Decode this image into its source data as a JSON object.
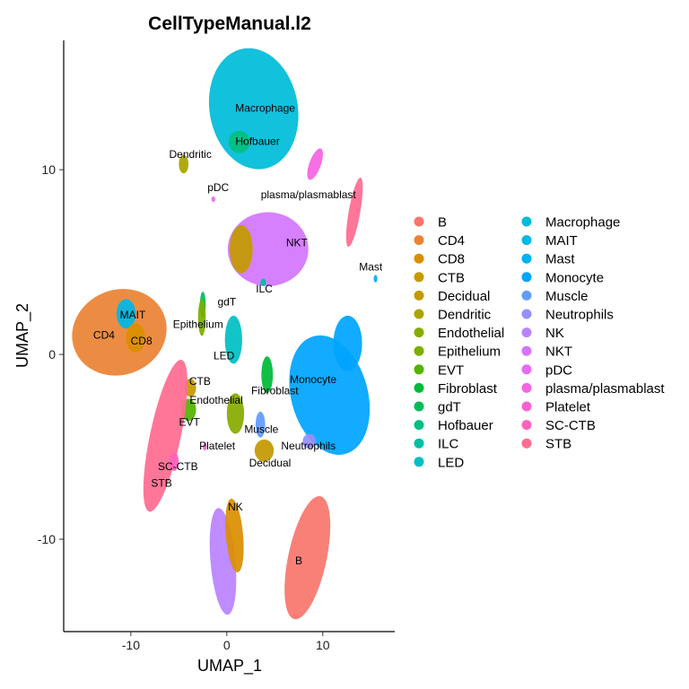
{
  "chart_data": {
    "type": "scatter",
    "title": "CellTypeManual.l2",
    "xlabel": "UMAP_1",
    "ylabel": "UMAP_2",
    "xlim": [
      -17,
      17.5
    ],
    "ylim": [
      -15,
      17
    ],
    "xticks": [
      -10,
      0,
      10
    ],
    "yticks": [
      -10,
      0,
      10
    ],
    "grid": false,
    "legend_position": "right",
    "legend_columns": 2,
    "categories": [
      {
        "name": "B",
        "color": "#F8766D"
      },
      {
        "name": "CD4",
        "color": "#EB8335"
      },
      {
        "name": "CD8",
        "color": "#DA8F00"
      },
      {
        "name": "CTB",
        "color": "#C49A00"
      },
      {
        "name": "Decidual",
        "color": "#C49A00"
      },
      {
        "name": "Dendritic",
        "color": "#A9A400"
      },
      {
        "name": "Endothelial",
        "color": "#86AC00"
      },
      {
        "name": "Epithelium",
        "color": "#7CAE00"
      },
      {
        "name": "EVT",
        "color": "#53B400"
      },
      {
        "name": "Fibroblast",
        "color": "#00BA38"
      },
      {
        "name": "gdT",
        "color": "#00BC59"
      },
      {
        "name": "Hofbauer",
        "color": "#00BF7D"
      },
      {
        "name": "ILC",
        "color": "#00C0A3"
      },
      {
        "name": "LED",
        "color": "#00BFC4"
      },
      {
        "name": "Macrophage",
        "color": "#00BCD8"
      },
      {
        "name": "MAIT",
        "color": "#00B8E7"
      },
      {
        "name": "Mast",
        "color": "#00B0F6"
      },
      {
        "name": "Monocyte",
        "color": "#00A5FF"
      },
      {
        "name": "Muscle",
        "color": "#619CFF"
      },
      {
        "name": "Neutrophils",
        "color": "#9590FF"
      },
      {
        "name": "NK",
        "color": "#B983FF"
      },
      {
        "name": "NKT",
        "color": "#D376FF"
      },
      {
        "name": "pDC",
        "color": "#E76BF3"
      },
      {
        "name": "plasma/plasmablast",
        "color": "#F564E3"
      },
      {
        "name": "Platelet",
        "color": "#FD61D1"
      },
      {
        "name": "SC-CTB",
        "color": "#FF62BC"
      },
      {
        "name": "STB",
        "color": "#FF6C91"
      }
    ],
    "clusters": [
      {
        "name": "Macrophage",
        "label": "Macrophage",
        "color": "#00BCD8",
        "cx": 2.8,
        "cy": 13.3,
        "rx": 4.6,
        "ry": 3.3,
        "angle": 10,
        "label_x": 4.0,
        "label_y": 13.3
      },
      {
        "name": "Hofbauer",
        "label": "Hofbauer",
        "color": "#00BF7D",
        "cx": 1.3,
        "cy": 11.5,
        "rx": 1.1,
        "ry": 0.6,
        "angle": 0,
        "label_x": 3.2,
        "label_y": 11.5
      },
      {
        "name": "Dendritic",
        "label": "Dendritic",
        "color": "#A9A400",
        "cx": -4.5,
        "cy": 10.3,
        "rx": 0.5,
        "ry": 0.5,
        "angle": 0,
        "label_x": -3.8,
        "label_y": 10.8
      },
      {
        "name": "pDC",
        "label": "pDC",
        "color": "#E76BF3",
        "cx": -1.4,
        "cy": 8.4,
        "rx": 0.2,
        "ry": 0.15,
        "angle": 0,
        "label_x": -0.9,
        "label_y": 9.0
      },
      {
        "name": "plasma/plasmablast",
        "label": "plasma/plasmablast",
        "color": "#F564E3",
        "cx": 9.2,
        "cy": 10.3,
        "rx": 0.6,
        "ry": 0.9,
        "angle": -20,
        "label_x": 8.5,
        "label_y": 8.6
      },
      {
        "name": "STB-upper",
        "label": "",
        "color": "#FF6C91",
        "cx": 13.3,
        "cy": 7.7,
        "rx": 0.6,
        "ry": 1.9,
        "angle": -10
      },
      {
        "name": "Mast",
        "label": "Mast",
        "color": "#00B0F6",
        "cx": 15.5,
        "cy": 4.1,
        "rx": 0.2,
        "ry": 0.2,
        "angle": 0,
        "label_x": 15.0,
        "label_y": 4.7
      },
      {
        "name": "NKT",
        "label": "NKT",
        "color": "#D376FF",
        "cx": 4.3,
        "cy": 5.7,
        "rx": 4.2,
        "ry": 2.0,
        "angle": 0,
        "label_x": 7.3,
        "label_y": 6.0
      },
      {
        "name": "CTB-upper",
        "label": "",
        "color": "#C49A00",
        "cx": 1.5,
        "cy": 5.7,
        "rx": 1.2,
        "ry": 1.3,
        "angle": 0
      },
      {
        "name": "ILC",
        "label": "ILC",
        "color": "#00C0A3",
        "cx": 3.8,
        "cy": 3.9,
        "rx": 0.3,
        "ry": 0.2,
        "angle": 0,
        "label_x": 3.9,
        "label_y": 3.5
      },
      {
        "name": "gdT",
        "label": "gdT",
        "color": "#00BC59",
        "cx": -2.5,
        "cy": 2.7,
        "rx": 0.3,
        "ry": 0.7,
        "angle": 0,
        "label_x": 0.0,
        "label_y": 2.8
      },
      {
        "name": "Epithelium",
        "label": "Epithelium",
        "color": "#7CAE00",
        "cx": -2.6,
        "cy": 2.0,
        "rx": 0.4,
        "ry": 1.0,
        "angle": 0,
        "label_x": -3.0,
        "label_y": 1.6
      },
      {
        "name": "CD4",
        "label": "CD4",
        "color": "#EB8335",
        "cx": -11.2,
        "cy": 1.2,
        "rx": 5.0,
        "ry": 2.3,
        "angle": 22,
        "label_x": -12.8,
        "label_y": 1.0
      },
      {
        "name": "MAIT",
        "label": "MAIT",
        "color": "#00B8E7",
        "cx": -10.5,
        "cy": 2.2,
        "rx": 1.0,
        "ry": 0.8,
        "angle": 0,
        "label_x": -9.8,
        "label_y": 2.1
      },
      {
        "name": "CD8",
        "label": "CD8",
        "color": "#DA8F00",
        "cx": -9.5,
        "cy": 0.9,
        "rx": 1.0,
        "ry": 0.8,
        "angle": 0,
        "label_x": -8.9,
        "label_y": 0.7
      },
      {
        "name": "LED",
        "label": "LED",
        "color": "#00BFC4",
        "cx": 0.7,
        "cy": 0.8,
        "rx": 0.9,
        "ry": 1.3,
        "angle": 0,
        "label_x": -0.3,
        "label_y": -0.1
      },
      {
        "name": "Monocyte",
        "label": "Monocyte",
        "color": "#00A5FF",
        "cx": 10.7,
        "cy": -2.2,
        "rx": 4.0,
        "ry": 3.3,
        "angle": 15,
        "label_x": 9.0,
        "label_y": -1.4
      },
      {
        "name": "Monocyte-tail",
        "label": "",
        "color": "#00A5FF",
        "cx": 12.6,
        "cy": 0.6,
        "rx": 1.5,
        "ry": 1.5,
        "angle": 0
      },
      {
        "name": "Neutrophils",
        "label": "Neutrophils",
        "color": "#9590FF",
        "cx": 8.6,
        "cy": -4.7,
        "rx": 0.7,
        "ry": 0.4,
        "angle": 0,
        "label_x": 8.5,
        "label_y": -5.0
      },
      {
        "name": "Fibroblast",
        "label": "Fibroblast",
        "color": "#00BA38",
        "cx": 4.2,
        "cy": -1.1,
        "rx": 0.6,
        "ry": 1.0,
        "angle": 0,
        "label_x": 5.0,
        "label_y": -2.0
      },
      {
        "name": "Muscle",
        "label": "Muscle",
        "color": "#619CFF",
        "cx": 3.5,
        "cy": -3.8,
        "rx": 0.5,
        "ry": 0.7,
        "angle": 0,
        "label_x": 3.6,
        "label_y": -4.1
      },
      {
        "name": "Decidual",
        "label": "Decidual",
        "color": "#C49A00",
        "cx": 3.9,
        "cy": -5.2,
        "rx": 1.0,
        "ry": 0.6,
        "angle": 0,
        "label_x": 4.5,
        "label_y": -5.9
      },
      {
        "name": "Endothelial",
        "label": "Endothelial",
        "color": "#86AC00",
        "cx": 0.9,
        "cy": -3.2,
        "rx": 0.9,
        "ry": 1.1,
        "angle": 0,
        "label_x": -1.1,
        "label_y": -2.5
      },
      {
        "name": "CTB",
        "label": "CTB",
        "color": "#C49A00",
        "cx": -3.8,
        "cy": -1.8,
        "rx": 0.6,
        "ry": 0.5,
        "angle": 0,
        "label_x": -2.8,
        "label_y": -1.5
      },
      {
        "name": "EVT",
        "label": "EVT",
        "color": "#53B400",
        "cx": -4.0,
        "cy": -3.0,
        "rx": 0.8,
        "ry": 0.6,
        "angle": 0,
        "label_x": -3.9,
        "label_y": -3.7
      },
      {
        "name": "Platelet",
        "label": "Platelet",
        "color": "#FD61D1",
        "cx": -2.3,
        "cy": -5.0,
        "rx": 0.2,
        "ry": 0.2,
        "angle": 0,
        "label_x": -1.0,
        "label_y": -5.0
      },
      {
        "name": "STB",
        "label": "STB",
        "color": "#FF6C91",
        "cx": -6.4,
        "cy": -4.4,
        "rx": 1.6,
        "ry": 4.2,
        "angle": -12,
        "label_x": -6.8,
        "label_y": -7.0
      },
      {
        "name": "SC-CTB",
        "label": "SC-CTB",
        "color": "#FF62BC",
        "cx": -5.5,
        "cy": -5.8,
        "rx": 0.5,
        "ry": 0.5,
        "angle": 0,
        "label_x": -5.1,
        "label_y": -6.1
      },
      {
        "name": "NK",
        "label": "NK",
        "color": "#B983FF",
        "cx": -0.4,
        "cy": -11.2,
        "rx": 1.3,
        "ry": 2.9,
        "angle": 5,
        "label_x": 0.9,
        "label_y": -8.3
      },
      {
        "name": "CD8-NK",
        "label": "",
        "color": "#DA8F00",
        "cx": 0.8,
        "cy": -9.8,
        "rx": 0.9,
        "ry": 2.0,
        "angle": 5
      },
      {
        "name": "B",
        "label": "B",
        "color": "#F8766D",
        "cx": 8.4,
        "cy": -11.0,
        "rx": 2.0,
        "ry": 3.4,
        "angle": -12,
        "label_x": 7.5,
        "label_y": -11.2
      }
    ]
  }
}
